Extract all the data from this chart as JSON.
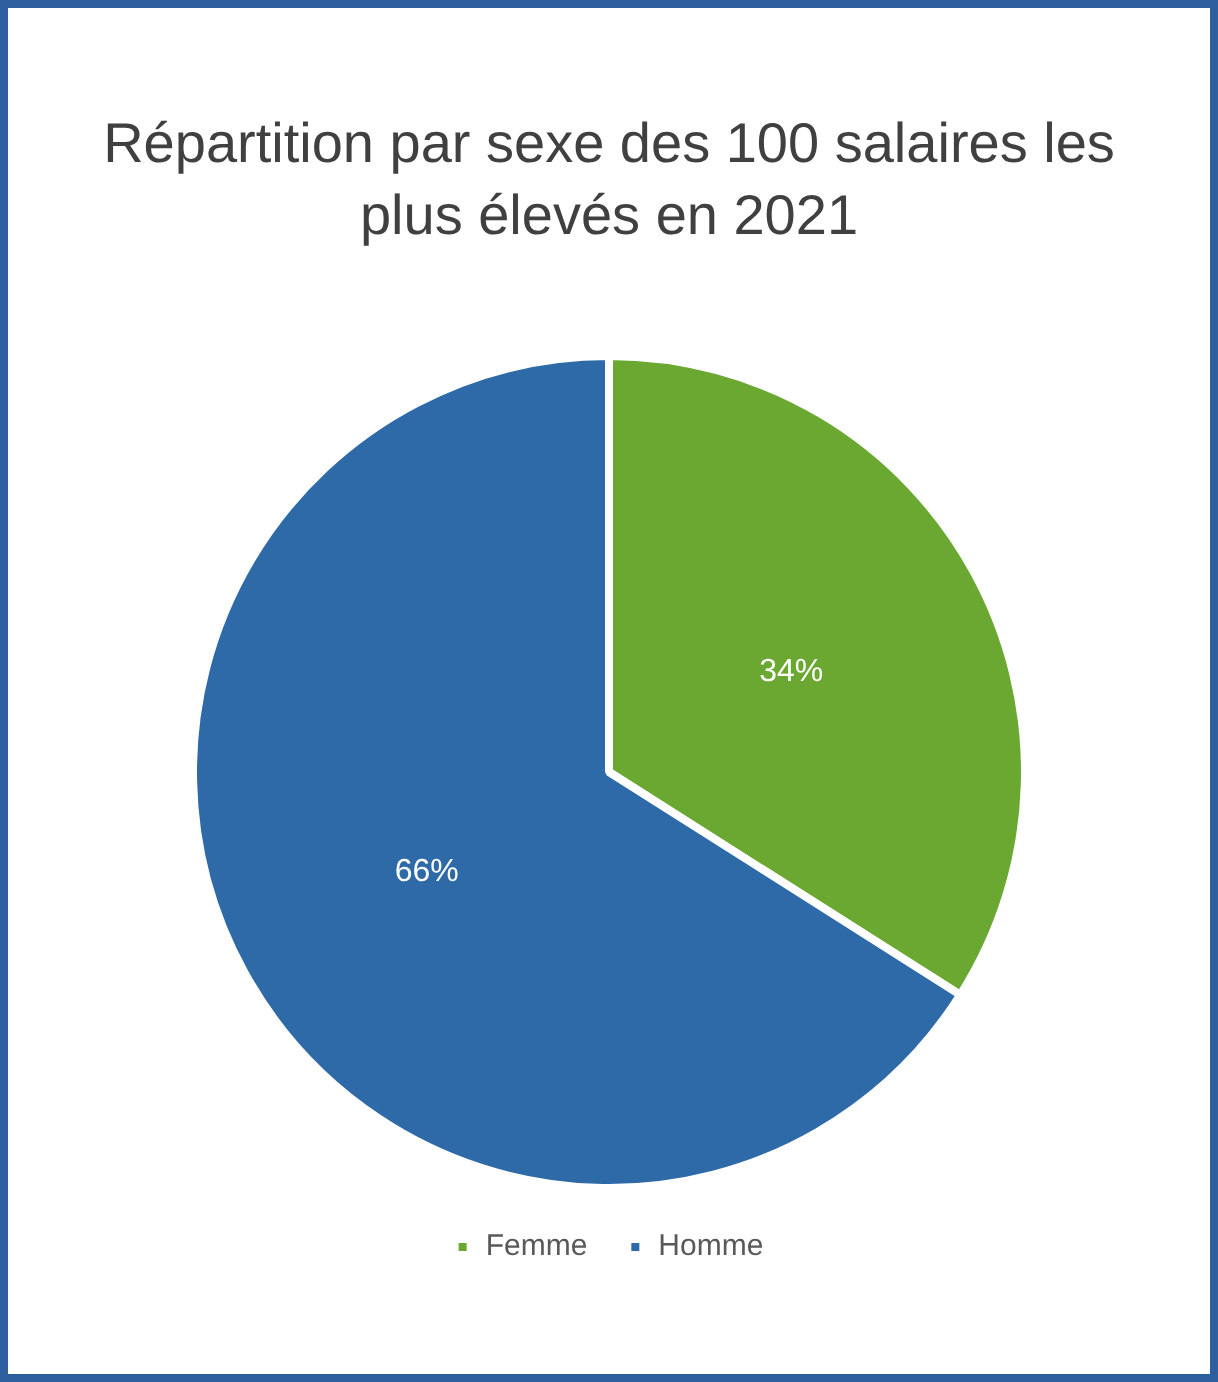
{
  "chart_data": {
    "type": "pie",
    "title": "Répartition par sexe des 100 salaires les plus élevés en 2021",
    "categories": [
      "Femme",
      "Homme"
    ],
    "values": [
      34,
      66
    ],
    "colors": [
      "#6aa832",
      "#2f6aa8"
    ],
    "value_labels": [
      "34%",
      "66%"
    ],
    "legend": "bottom"
  }
}
